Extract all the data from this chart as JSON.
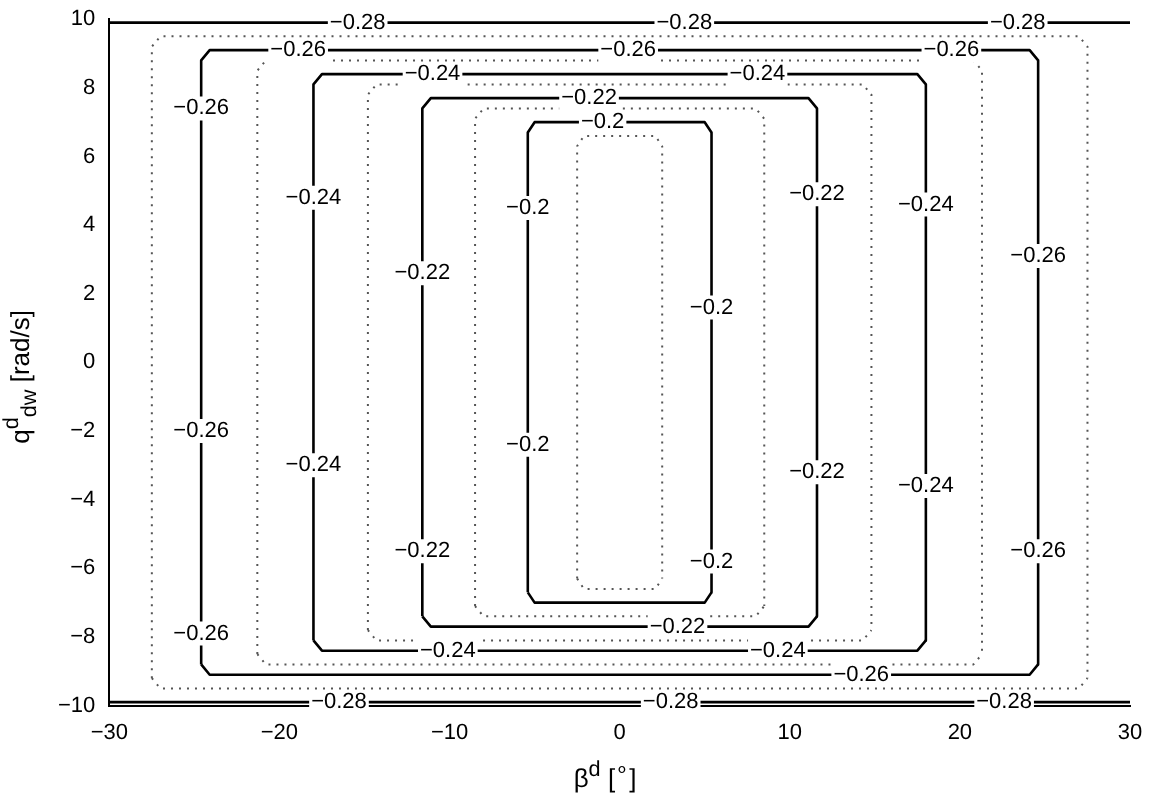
{
  "chart_data": {
    "type": "line",
    "xlabel": "β$^{d}$ [$^{∘}$]",
    "ylabel": "q$^{d}$$_{dw}$ [rad/s]",
    "xlim": [
      -30,
      30
    ],
    "ylim": [
      -10,
      10
    ],
    "xticks": [
      -30,
      -20,
      -10,
      0,
      10,
      20,
      30
    ],
    "yticks": [
      -10,
      -8,
      -6,
      -4,
      -2,
      0,
      2,
      4,
      6,
      8,
      10
    ],
    "grid": false,
    "legend": false,
    "marker": "none",
    "line_style": "solid",
    "series": [
      {
        "color": "#000000",
        "x": [
          -5.4,
          -5.4,
          -5.0,
          5.0,
          5.4,
          5.4
        ],
        "values": [
          -6.7,
          6.7,
          7.0,
          7.0,
          6.7,
          -6.7
        ]
      },
      {
        "color": "#000000",
        "x": [
          -5.4,
          -5.0,
          5.0,
          5.4
        ],
        "values": [
          -6.7,
          -7.0,
          -7.0,
          -6.7
        ]
      },
      {
        "color": "#000000",
        "x": [
          -11.6,
          -11.6,
          -11.1,
          11.1,
          11.6,
          11.6
        ],
        "values": [
          -7.4,
          7.4,
          7.7,
          7.7,
          7.4,
          -7.4
        ]
      },
      {
        "color": "#000000",
        "x": [
          -11.6,
          -11.1,
          11.1,
          11.6
        ],
        "values": [
          -7.4,
          -7.7,
          -7.7,
          -7.4
        ]
      },
      {
        "color": "#000000",
        "x": [
          -18.0,
          -18.0,
          -17.5,
          17.5,
          18.0,
          18.0
        ],
        "values": [
          -8.1,
          8.1,
          8.4,
          8.4,
          8.1,
          -8.1
        ]
      },
      {
        "color": "#000000",
        "x": [
          -18.0,
          -17.5,
          17.5,
          18.0
        ],
        "values": [
          -8.1,
          -8.4,
          -8.4,
          -8.1
        ]
      },
      {
        "color": "#000000",
        "x": [
          -24.6,
          -24.6,
          -24.1,
          24.1,
          24.6,
          24.6
        ],
        "values": [
          -8.8,
          8.8,
          9.1,
          9.1,
          8.8,
          -8.8
        ]
      },
      {
        "color": "#000000",
        "x": [
          -24.6,
          -24.1,
          24.1,
          24.6
        ],
        "values": [
          -8.8,
          -9.1,
          -9.1,
          -8.8
        ]
      },
      {
        "color": "#000000",
        "x": [
          -30,
          30
        ],
        "values": [
          9.9,
          9.9
        ]
      },
      {
        "color": "#000000",
        "x": [
          -30,
          30
        ],
        "values": [
          -9.9,
          -9.9
        ]
      },
      {
        "color": "#555555",
        "line_style": "dotted",
        "x": [
          -2.5,
          -2.5,
          -2.1,
          2.1,
          2.5,
          2.5
        ],
        "values": [
          -6.3,
          6.3,
          6.6,
          6.6,
          6.3,
          -6.3
        ]
      },
      {
        "color": "#555555",
        "line_style": "dotted",
        "x": [
          -2.5,
          -2.1,
          2.1,
          2.5
        ],
        "values": [
          -6.3,
          -6.6,
          -6.6,
          -6.3
        ]
      },
      {
        "color": "#555555",
        "line_style": "dotted",
        "x": [
          -8.5,
          -8.5,
          -8.0,
          8.0,
          8.5,
          8.5
        ],
        "values": [
          -7.1,
          7.1,
          7.4,
          7.4,
          7.1,
          -7.1
        ]
      },
      {
        "color": "#555555",
        "line_style": "dotted",
        "x": [
          -8.5,
          -8.0,
          8.0,
          8.5
        ],
        "values": [
          -7.1,
          -7.4,
          -7.4,
          -7.1
        ]
      },
      {
        "color": "#555555",
        "line_style": "dotted",
        "x": [
          -14.8,
          -14.8,
          -14.3,
          14.3,
          14.8,
          14.8
        ],
        "values": [
          -7.8,
          7.8,
          8.1,
          8.1,
          7.8,
          -7.8
        ]
      },
      {
        "color": "#555555",
        "line_style": "dotted",
        "x": [
          -14.8,
          -14.3,
          14.3,
          14.8
        ],
        "values": [
          -7.8,
          -8.1,
          -8.1,
          -7.8
        ]
      },
      {
        "color": "#555555",
        "line_style": "dotted",
        "x": [
          -21.3,
          -21.3,
          -20.8,
          20.8,
          21.3,
          21.3
        ],
        "values": [
          -8.5,
          8.5,
          8.8,
          8.8,
          8.5,
          -8.5
        ]
      },
      {
        "color": "#555555",
        "line_style": "dotted",
        "x": [
          -21.3,
          -20.8,
          20.8,
          21.3
        ],
        "values": [
          -8.5,
          -8.8,
          -8.8,
          -8.5
        ]
      },
      {
        "color": "#555555",
        "line_style": "dotted",
        "x": [
          -27.5,
          -27.5,
          -27.0,
          27.0,
          27.5,
          27.5
        ],
        "values": [
          -9.2,
          9.2,
          9.5,
          9.5,
          9.2,
          -9.2
        ]
      },
      {
        "color": "#555555",
        "line_style": "dotted",
        "x": [
          -27.5,
          -27.0,
          27.0,
          27.5
        ],
        "values": [
          -9.2,
          -9.5,
          -9.5,
          -9.2
        ]
      }
    ],
    "annotations": [
      {
        "text": "−0.28",
        "x": -15.4,
        "y": 9.9
      },
      {
        "text": "−0.28",
        "x": 3.8,
        "y": 9.9
      },
      {
        "text": "−0.28",
        "x": 23.4,
        "y": 9.9
      },
      {
        "text": "−0.28",
        "x": -16.5,
        "y": -9.9
      },
      {
        "text": "−0.28",
        "x": 3.0,
        "y": -9.9
      },
      {
        "text": "−0.28",
        "x": 22.6,
        "y": -9.9
      },
      {
        "text": "−0.26",
        "x": -18.9,
        "y": 9.1
      },
      {
        "text": "−0.26",
        "x": 0.5,
        "y": 9.1
      },
      {
        "text": "−0.26",
        "x": 19.5,
        "y": 9.1
      },
      {
        "text": "−0.26",
        "x": -24.6,
        "y": 7.4
      },
      {
        "text": "−0.26",
        "x": -24.6,
        "y": -2
      },
      {
        "text": "−0.26",
        "x": -24.6,
        "y": -7.9
      },
      {
        "text": "−0.26",
        "x": 14.2,
        "y": -9.1
      },
      {
        "text": "−0.26",
        "x": 24.6,
        "y": 3.1
      },
      {
        "text": "−0.26",
        "x": 24.6,
        "y": -5.5
      },
      {
        "text": "−0.24",
        "x": -11.0,
        "y": 8.4
      },
      {
        "text": "−0.24",
        "x": 8.1,
        "y": 8.4
      },
      {
        "text": "−0.24",
        "x": -18.0,
        "y": 4.8
      },
      {
        "text": "−0.24",
        "x": -18.0,
        "y": -3.0
      },
      {
        "text": "−0.24",
        "x": -10.1,
        "y": -8.4
      },
      {
        "text": "−0.24",
        "x": 9.3,
        "y": -8.4
      },
      {
        "text": "−0.24",
        "x": 18.0,
        "y": 4.6
      },
      {
        "text": "−0.24",
        "x": 18.0,
        "y": -3.6
      },
      {
        "text": "−0.22",
        "x": -1.8,
        "y": 7.7
      },
      {
        "text": "−0.22",
        "x": 3.4,
        "y": -7.7
      },
      {
        "text": "−0.22",
        "x": -11.6,
        "y": 2.6
      },
      {
        "text": "−0.22",
        "x": -11.6,
        "y": -5.5
      },
      {
        "text": "−0.22",
        "x": 11.6,
        "y": 4.9
      },
      {
        "text": "−0.22",
        "x": 11.6,
        "y": -3.2
      },
      {
        "text": "−0.2",
        "x": -1.0,
        "y": 7.0
      },
      {
        "text": "−0.2",
        "x": -5.4,
        "y": 4.5
      },
      {
        "text": "−0.2",
        "x": -5.4,
        "y": -2.4
      },
      {
        "text": "−0.2",
        "x": 5.4,
        "y": 1.6
      },
      {
        "text": "−0.2",
        "x": 5.4,
        "y": -5.8
      }
    ]
  }
}
